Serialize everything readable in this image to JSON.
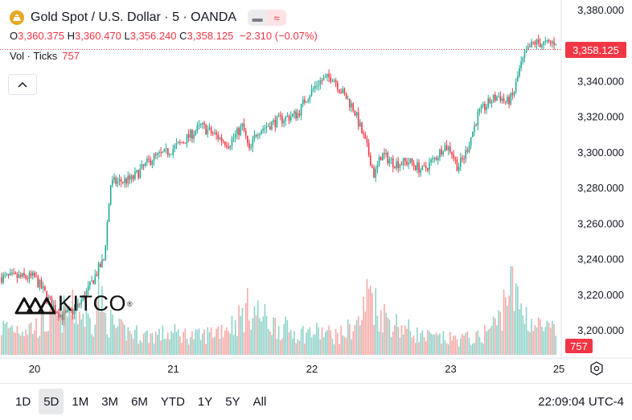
{
  "header": {
    "title": "Gold Spot / U.S. Dollar · 5 · OANDA",
    "toggle_icons": [
      "minus-icon",
      "wave-icon"
    ]
  },
  "ohlc": {
    "open_label": "O",
    "open": "3,360.375",
    "high_label": "H",
    "high": "3,360.470",
    "low_label": "L",
    "low": "3,356.240",
    "close_label": "C",
    "close": "3,358.125",
    "change": "−2.310 (−0.07%)"
  },
  "volume": {
    "label": "Vol · Ticks",
    "value": "757"
  },
  "logo": {
    "text": "KITCO",
    "mark": "®"
  },
  "current_price_label": "3,358.125",
  "current_volume_label": "757",
  "bottom_bar": {
    "ranges": [
      "1D",
      "5D",
      "1M",
      "3M",
      "6M",
      "YTD",
      "1Y",
      "5Y",
      "All"
    ],
    "active_range": "5D",
    "clock": "22:09:04 UTC-4"
  },
  "colors": {
    "up": "#22ab94",
    "down": "#f23645",
    "volume_up": "#8fd3c9",
    "volume_down": "#f7a9a7",
    "gold_icon": "#e8a824"
  },
  "chart_data": {
    "type": "line",
    "title": "Gold Spot / U.S. Dollar · 5 · OANDA",
    "xlabel": "",
    "ylabel": "",
    "x_ticks": [
      "20",
      "21",
      "22",
      "23",
      "25"
    ],
    "y_ticks": [
      "3,380.000",
      "3,360.000",
      "3,340.000",
      "3,320.000",
      "3,300.000",
      "3,280.000",
      "3,260.000",
      "3,240.000",
      "3,220.000",
      "3,200.000"
    ],
    "ylim": [
      3190,
      3385
    ],
    "current_price": 3358.125,
    "grid": false,
    "series": [
      {
        "x": [
          0.0,
          0.05,
          0.12,
          0.2,
          0.3,
          0.4,
          0.45,
          0.5,
          0.55,
          0.7,
          0.85,
          0.95,
          1.05,
          1.2,
          1.3,
          1.4,
          1.5,
          1.55,
          1.6,
          1.75,
          1.9,
          1.95,
          2.05,
          2.15,
          2.2,
          2.3,
          2.4,
          2.45,
          2.5,
          2.6,
          2.7,
          2.8,
          2.9,
          2.95,
          3.0,
          3.05,
          3.1,
          3.2,
          3.3,
          3.35,
          3.4,
          3.45,
          3.5,
          3.55,
          3.6,
          3.7,
          3.8,
          3.9,
          4.0
        ],
        "values": [
          3230,
          3224,
          3215,
          3208,
          3212,
          3225,
          3233,
          3240,
          3283,
          3285,
          3297,
          3300,
          3305,
          3315,
          3310,
          3305,
          3315,
          3300,
          3312,
          3318,
          3322,
          3330,
          3340,
          3343,
          3336,
          3325,
          3302,
          3287,
          3299,
          3294,
          3295,
          3290,
          3298,
          3304,
          3302,
          3292,
          3298,
          3322,
          3330,
          3332,
          3328,
          3332,
          3348,
          3357,
          3362,
          3361,
          3364,
          3362,
          3358
        ]
      }
    ],
    "volume_ticks": {
      "x": [
        0.0,
        0.1,
        0.2,
        0.3,
        0.42,
        0.46,
        0.5,
        0.6,
        0.8,
        1.0,
        1.2,
        1.45,
        1.55,
        1.7,
        1.9,
        2.05,
        2.2,
        2.35,
        2.42,
        2.47,
        2.6,
        2.8,
        3.0,
        3.2,
        3.35,
        3.42,
        3.48,
        3.6,
        3.8,
        4.0
      ],
      "values": [
        2300,
        2700,
        3400,
        3800,
        2600,
        5800,
        3200,
        2100,
        1600,
        1800,
        1500,
        2700,
        4000,
        2600,
        1800,
        1900,
        1600,
        2800,
        5800,
        3700,
        2600,
        1500,
        1300,
        1400,
        2900,
        6300,
        4400,
        2500,
        1700,
        757
      ]
    }
  }
}
